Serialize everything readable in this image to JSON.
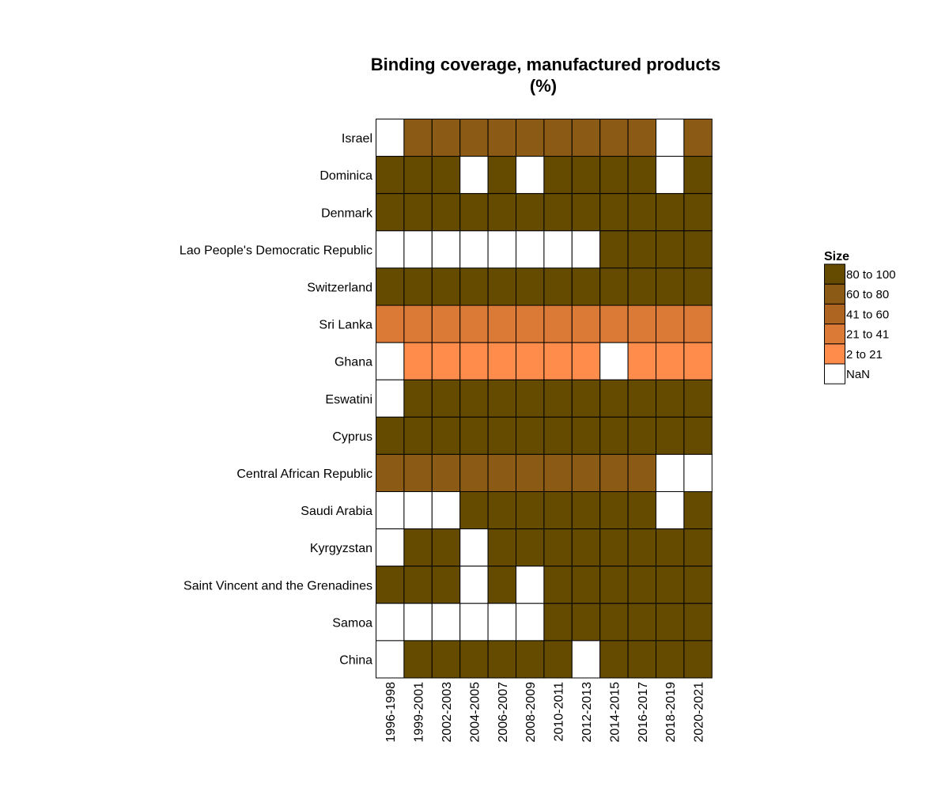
{
  "chart_data": {
    "type": "heatmap",
    "title_line1": "Binding coverage, manufactured products",
    "title_line2": "(%)",
    "xlabel": "",
    "ylabel": "",
    "x": [
      "1996-1998",
      "1999-2001",
      "2002-2003",
      "2004-2005",
      "2006-2007",
      "2008-2009",
      "2010-2011",
      "2012-2013",
      "2014-2015",
      "2016-2017",
      "2018-2019",
      "2020-2021"
    ],
    "y": [
      "Israel",
      "Dominica",
      "Denmark",
      "Lao People's Democratic Republic",
      "Switzerland",
      "Sri Lanka",
      "Ghana",
      "Eswatini",
      "Cyprus",
      "Central African Republic",
      "Saudi Arabia",
      "Kyrgyzstan",
      "Saint Vincent and the Grenadines",
      "Samoa",
      "China"
    ],
    "legend": {
      "title": "Size",
      "placement": "right",
      "bins": [
        {
          "label": "80 to 100",
          "color": "#654b00"
        },
        {
          "label": "60 to 80",
          "color": "#8b5a14"
        },
        {
          "label": "41 to 60",
          "color": "#ae6521"
        },
        {
          "label": "21 to 41",
          "color": "#db7a37"
        },
        {
          "label": "2 to 21",
          "color": "#ff8c4a"
        },
        {
          "label": "NaN",
          "color": "#ffffff"
        }
      ]
    },
    "bin_values": [
      [
        5,
        1,
        1,
        1,
        1,
        1,
        1,
        1,
        1,
        1,
        5,
        1
      ],
      [
        0,
        0,
        0,
        5,
        0,
        5,
        0,
        0,
        0,
        0,
        5,
        0
      ],
      [
        0,
        0,
        0,
        0,
        0,
        0,
        0,
        0,
        0,
        0,
        0,
        0
      ],
      [
        5,
        5,
        5,
        5,
        5,
        5,
        5,
        5,
        0,
        0,
        0,
        0
      ],
      [
        0,
        0,
        0,
        0,
        0,
        0,
        0,
        0,
        0,
        0,
        0,
        0
      ],
      [
        3,
        3,
        3,
        3,
        3,
        3,
        3,
        3,
        3,
        3,
        3,
        3
      ],
      [
        5,
        4,
        4,
        4,
        4,
        4,
        4,
        4,
        5,
        4,
        4,
        4
      ],
      [
        5,
        0,
        0,
        0,
        0,
        0,
        0,
        0,
        0,
        0,
        0,
        0
      ],
      [
        0,
        0,
        0,
        0,
        0,
        0,
        0,
        0,
        0,
        0,
        0,
        0
      ],
      [
        1,
        1,
        1,
        1,
        1,
        1,
        1,
        1,
        1,
        1,
        5,
        5
      ],
      [
        5,
        5,
        5,
        0,
        0,
        0,
        0,
        0,
        0,
        0,
        5,
        0
      ],
      [
        5,
        0,
        0,
        5,
        0,
        0,
        0,
        0,
        0,
        0,
        0,
        0
      ],
      [
        0,
        0,
        0,
        5,
        0,
        5,
        0,
        0,
        0,
        0,
        0,
        0
      ],
      [
        5,
        5,
        5,
        5,
        5,
        5,
        0,
        0,
        0,
        0,
        0,
        0
      ],
      [
        5,
        0,
        0,
        0,
        0,
        0,
        0,
        5,
        0,
        0,
        0,
        0
      ]
    ]
  }
}
